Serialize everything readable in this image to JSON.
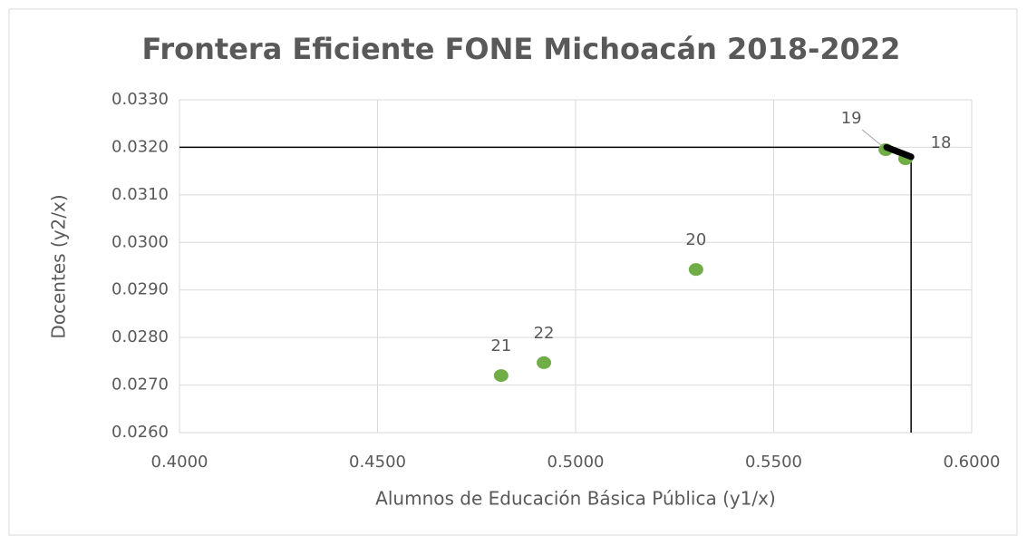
{
  "chart_data": {
    "type": "scatter",
    "title": "Frontera Eficiente FONE Michoacán 2018-2022",
    "xlabel": "Alumnos de Educación Básica Pública (y1/x)",
    "ylabel": "Docentes (y2/x)",
    "series": [
      {
        "color": "#70ad47",
        "x": [
          0.5833,
          0.5783,
          0.5304,
          0.4812,
          0.492
        ],
        "values": [
          0.03176,
          0.03195,
          0.02943,
          0.0272,
          0.02747
        ],
        "labels": [
          "18",
          "19",
          "20",
          "21",
          "22"
        ]
      }
    ],
    "frontier": {
      "color": "#000000",
      "x": [
        0.4,
        0.5785,
        0.5847,
        0.5847
      ],
      "values": [
        0.032,
        0.032,
        0.0318,
        0.026
      ]
    },
    "xlim": [
      0.4,
      0.6
    ],
    "xticks": [
      {
        "value": 0.4,
        "label": "0.4000"
      },
      {
        "value": 0.45,
        "label": "0.4500"
      },
      {
        "value": 0.5,
        "label": "0.5000"
      },
      {
        "value": 0.55,
        "label": "0.5500"
      },
      {
        "value": 0.6,
        "label": "0.6000"
      }
    ],
    "ylim": [
      0.026,
      0.033
    ],
    "yticks": [
      {
        "value": 0.026,
        "label": "0.0260"
      },
      {
        "value": 0.027,
        "label": "0.0270"
      },
      {
        "value": 0.028,
        "label": "0.0280"
      },
      {
        "value": 0.029,
        "label": "0.0290"
      },
      {
        "value": 0.03,
        "label": "0.0300"
      },
      {
        "value": 0.031,
        "label": "0.0310"
      },
      {
        "value": 0.032,
        "label": "0.0320"
      },
      {
        "value": 0.033,
        "label": "0.0330"
      }
    ],
    "grid": true
  }
}
